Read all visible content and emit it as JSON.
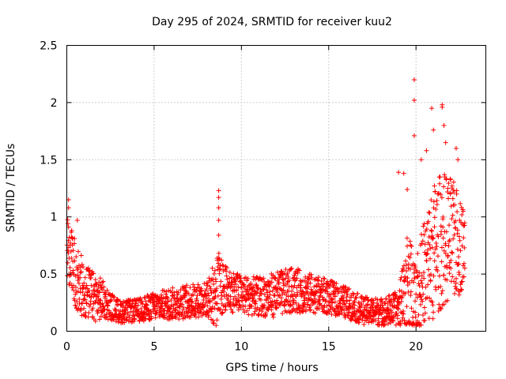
{
  "chart_data": {
    "type": "scatter",
    "title": "Day 295 of 2024, SRMTID for receiver kuu2",
    "xlabel": "GPS time / hours",
    "ylabel": "SRMTID / TECUs",
    "xlim": [
      0,
      24
    ],
    "ylim": [
      0,
      2.5
    ],
    "x_ticks": [
      0,
      5,
      10,
      15,
      20
    ],
    "y_ticks": [
      0,
      0.5,
      1,
      1.5,
      2,
      2.5
    ],
    "x_tick_labels": [
      "0",
      "5",
      "10",
      "15",
      "20"
    ],
    "y_tick_labels": [
      "0",
      "0.5",
      "1",
      "1.5",
      "2",
      "2.5"
    ],
    "grid": true,
    "marker": "+",
    "color": "#ff0000",
    "series": [
      {
        "name": "SRMTID",
        "envelope_hours": [
          0,
          0.5,
          1,
          1.5,
          2,
          2.5,
          3,
          4,
          5,
          6,
          7,
          8,
          8.7,
          9,
          10,
          11,
          12,
          13,
          14,
          15,
          16,
          17,
          18,
          19,
          19.5,
          20,
          20.5,
          21,
          21.5,
          22,
          22.5,
          22.8
        ],
        "typical_values": [
          0.7,
          0.5,
          0.35,
          0.3,
          0.28,
          0.22,
          0.17,
          0.18,
          0.22,
          0.24,
          0.26,
          0.28,
          0.35,
          0.38,
          0.32,
          0.3,
          0.32,
          0.36,
          0.33,
          0.3,
          0.25,
          0.18,
          0.17,
          0.2,
          0.4,
          0.25,
          0.5,
          0.7,
          0.8,
          0.8,
          0.75,
          0.75
        ],
        "spread": [
          0.35,
          0.3,
          0.25,
          0.22,
          0.18,
          0.12,
          0.1,
          0.1,
          0.12,
          0.14,
          0.15,
          0.15,
          0.35,
          0.2,
          0.17,
          0.17,
          0.2,
          0.2,
          0.17,
          0.15,
          0.14,
          0.12,
          0.12,
          0.15,
          0.5,
          0.4,
          0.5,
          0.6,
          0.6,
          0.55,
          0.45,
          0.3
        ],
        "notable_points": [
          {
            "x": 0.1,
            "y": 1.15
          },
          {
            "x": 0.1,
            "y": 1.08
          },
          {
            "x": 0.6,
            "y": 0.97
          },
          {
            "x": 8.7,
            "y": 1.23
          },
          {
            "x": 8.7,
            "y": 1.17
          },
          {
            "x": 8.7,
            "y": 1.08
          },
          {
            "x": 8.7,
            "y": 0.97
          },
          {
            "x": 8.7,
            "y": 0.84
          },
          {
            "x": 19.0,
            "y": 1.39
          },
          {
            "x": 19.3,
            "y": 1.38
          },
          {
            "x": 19.5,
            "y": 1.24
          },
          {
            "x": 19.9,
            "y": 2.2
          },
          {
            "x": 19.9,
            "y": 2.02
          },
          {
            "x": 19.9,
            "y": 1.71
          },
          {
            "x": 20.3,
            "y": 1.5
          },
          {
            "x": 20.6,
            "y": 1.58
          },
          {
            "x": 20.9,
            "y": 1.95
          },
          {
            "x": 21.0,
            "y": 1.76
          },
          {
            "x": 21.5,
            "y": 1.98
          },
          {
            "x": 21.5,
            "y": 1.96
          },
          {
            "x": 21.6,
            "y": 1.8
          },
          {
            "x": 21.7,
            "y": 1.65
          },
          {
            "x": 22.3,
            "y": 1.6
          },
          {
            "x": 22.4,
            "y": 1.5
          },
          {
            "x": 20.0,
            "y": 0.06
          },
          {
            "x": 20.2,
            "y": 0.05
          }
        ]
      }
    ]
  }
}
